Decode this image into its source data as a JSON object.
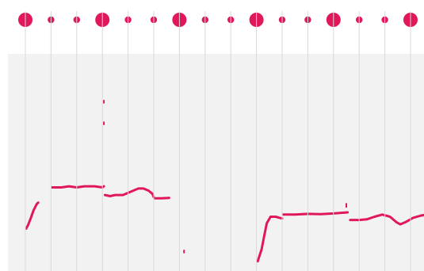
{
  "app": {
    "view": "pitch-contour-editor"
  },
  "colors": {
    "accent": "#e0185a",
    "panel_background": "#f2f2f2",
    "grid_line": "#d9d9d9",
    "page_background": "#ffffff"
  },
  "beat_markers": [
    {
      "beat": 1,
      "kind": "downbeat"
    },
    {
      "beat": 2,
      "kind": "subbeat"
    },
    {
      "beat": 3,
      "kind": "subbeat"
    },
    {
      "beat": 4,
      "kind": "downbeat"
    },
    {
      "beat": 5,
      "kind": "subbeat"
    },
    {
      "beat": 6,
      "kind": "subbeat"
    },
    {
      "beat": 7,
      "kind": "downbeat"
    },
    {
      "beat": 8,
      "kind": "subbeat"
    },
    {
      "beat": 9,
      "kind": "subbeat"
    },
    {
      "beat": 10,
      "kind": "downbeat"
    },
    {
      "beat": 11,
      "kind": "subbeat"
    },
    {
      "beat": 12,
      "kind": "subbeat"
    },
    {
      "beat": 13,
      "kind": "downbeat"
    },
    {
      "beat": 14,
      "kind": "subbeat"
    },
    {
      "beat": 15,
      "kind": "subbeat"
    },
    {
      "beat": 16,
      "kind": "downbeat"
    }
  ],
  "pitch_range": {
    "low": 0,
    "high": 100
  },
  "time_range": {
    "start": 0,
    "end": 15.7
  },
  "pitch_segments": [
    {
      "points": [
        [
          0.03,
          19.5
        ],
        [
          0.1,
          21
        ],
        [
          0.2,
          24
        ],
        [
          0.32,
          28
        ],
        [
          0.45,
          31
        ],
        [
          0.5,
          31.5
        ]
      ]
    },
    {
      "points": [
        [
          1.03,
          38.5
        ],
        [
          1.4,
          38.5
        ],
        [
          1.7,
          39
        ],
        [
          2.0,
          38.5
        ],
        [
          2.3,
          39
        ],
        [
          2.7,
          39
        ],
        [
          3.0,
          38.5
        ],
        [
          3.06,
          39
        ]
      ]
    },
    {
      "points": [
        [
          3.1,
          35
        ],
        [
          3.3,
          34.5
        ],
        [
          3.5,
          35
        ],
        [
          3.8,
          35
        ],
        [
          4.0,
          36
        ],
        [
          4.2,
          37
        ],
        [
          4.4,
          38
        ],
        [
          4.6,
          38
        ],
        [
          4.8,
          37
        ],
        [
          4.95,
          35.5
        ],
        [
          5.0,
          34
        ]
      ]
    },
    {
      "points": [
        [
          5.05,
          33.5
        ],
        [
          5.3,
          33.5
        ],
        [
          5.6,
          33.7
        ]
      ]
    },
    {
      "points": [
        [
          9.05,
          4.5
        ],
        [
          9.2,
          10
        ],
        [
          9.3,
          16
        ],
        [
          9.4,
          22
        ],
        [
          9.55,
          25
        ],
        [
          9.75,
          25
        ],
        [
          9.9,
          24.5
        ],
        [
          10.0,
          24.2
        ]
      ]
    },
    {
      "points": [
        [
          10.05,
          26
        ],
        [
          10.5,
          26
        ],
        [
          11.0,
          26.3
        ],
        [
          11.5,
          26.2
        ],
        [
          12.0,
          26.5
        ],
        [
          12.3,
          26.8
        ],
        [
          12.55,
          27
        ]
      ]
    },
    {
      "points": [
        [
          12.65,
          23.5
        ],
        [
          13.0,
          23.5
        ],
        [
          13.3,
          23.8
        ],
        [
          13.6,
          25
        ],
        [
          13.9,
          26
        ],
        [
          14.2,
          25
        ],
        [
          14.45,
          22.5
        ],
        [
          14.6,
          21.5
        ],
        [
          14.8,
          22.5
        ],
        [
          15.1,
          24.5
        ],
        [
          15.4,
          25.5
        ],
        [
          15.6,
          26
        ]
      ]
    }
  ],
  "pitch_blips": [
    {
      "points": [
        [
          3.06,
          78.5
        ],
        [
          3.06,
          77.5
        ]
      ]
    },
    {
      "points": [
        [
          3.06,
          68.5
        ],
        [
          3.06,
          67.5
        ]
      ]
    },
    {
      "points": [
        [
          6.18,
          9.5
        ],
        [
          6.18,
          8.5
        ]
      ]
    },
    {
      "points": [
        [
          12.5,
          31
        ],
        [
          12.5,
          29.5
        ]
      ]
    }
  ]
}
